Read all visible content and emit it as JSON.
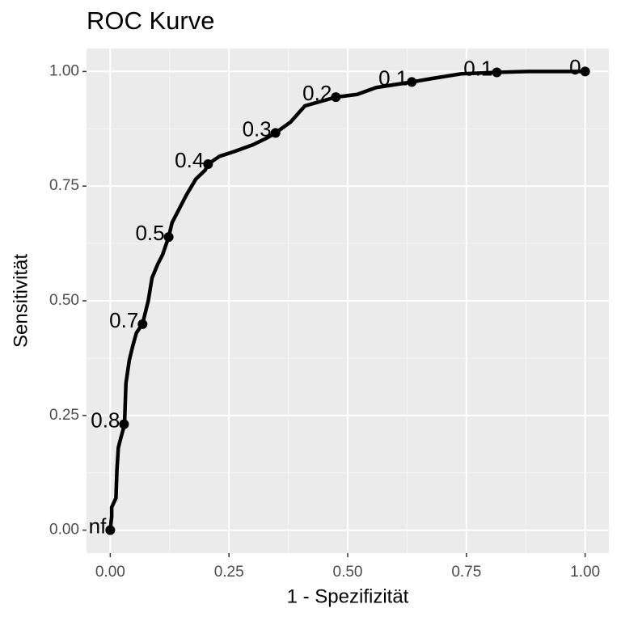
{
  "chart_data": {
    "type": "line",
    "title": "ROC Kurve",
    "x_label": "1 - Spezifizität",
    "y_label": "Sensitivität",
    "color": "#000000",
    "background": "#ebebeb",
    "grid": true,
    "minor_grid": true,
    "xlim": [
      -0.05,
      1.05
    ],
    "ylim": [
      -0.05,
      1.05
    ],
    "xticks": [
      {
        "value": 0,
        "label": "0.00"
      },
      {
        "value": 0.25,
        "label": "0.25"
      },
      {
        "value": 0.5,
        "label": "0.50"
      },
      {
        "value": 0.75,
        "label": "0.75"
      },
      {
        "value": 1,
        "label": "1.00"
      }
    ],
    "yticks": [
      {
        "value": 0,
        "label": "0.00"
      },
      {
        "value": 0.25,
        "label": "0.25"
      },
      {
        "value": 0.5,
        "label": "0.50"
      },
      {
        "value": 0.75,
        "label": "0.75"
      },
      {
        "value": 1,
        "label": "1.00"
      }
    ],
    "curve": {
      "x": [
        0,
        0.003,
        0.003,
        0.012,
        0.014,
        0.017,
        0.022,
        0.03,
        0.033,
        0.04,
        0.047,
        0.055,
        0.068,
        0.08,
        0.088,
        0.1,
        0.11,
        0.123,
        0.13,
        0.14,
        0.16,
        0.18,
        0.2,
        0.206,
        0.23,
        0.26,
        0.3,
        0.33,
        0.348,
        0.38,
        0.41,
        0.475,
        0.52,
        0.56,
        0.635,
        0.68,
        0.74,
        0.814,
        0.88,
        1
      ],
      "y": [
        0,
        0.03,
        0.05,
        0.07,
        0.13,
        0.18,
        0.2,
        0.23,
        0.32,
        0.37,
        0.4,
        0.43,
        0.45,
        0.5,
        0.55,
        0.58,
        0.6,
        0.639,
        0.67,
        0.69,
        0.73,
        0.765,
        0.785,
        0.798,
        0.815,
        0.825,
        0.84,
        0.855,
        0.866,
        0.89,
        0.925,
        0.944,
        0.95,
        0.965,
        0.977,
        0.985,
        0.995,
        0.998,
        1,
        1
      ]
    },
    "thresholds": {
      "x": [
        0,
        0.029,
        0.068,
        0.123,
        0.206,
        0.348,
        0.475,
        0.635,
        0.814,
        1
      ],
      "y": [
        0,
        0.231,
        0.449,
        0.639,
        0.798,
        0.866,
        0.944,
        0.977,
        0.998,
        1
      ],
      "labels": [
        "nf",
        "0.8",
        "0.7",
        "0.5",
        "0.4",
        "0.3",
        "0.2",
        "0.1",
        "0.1",
        "0"
      ]
    }
  }
}
